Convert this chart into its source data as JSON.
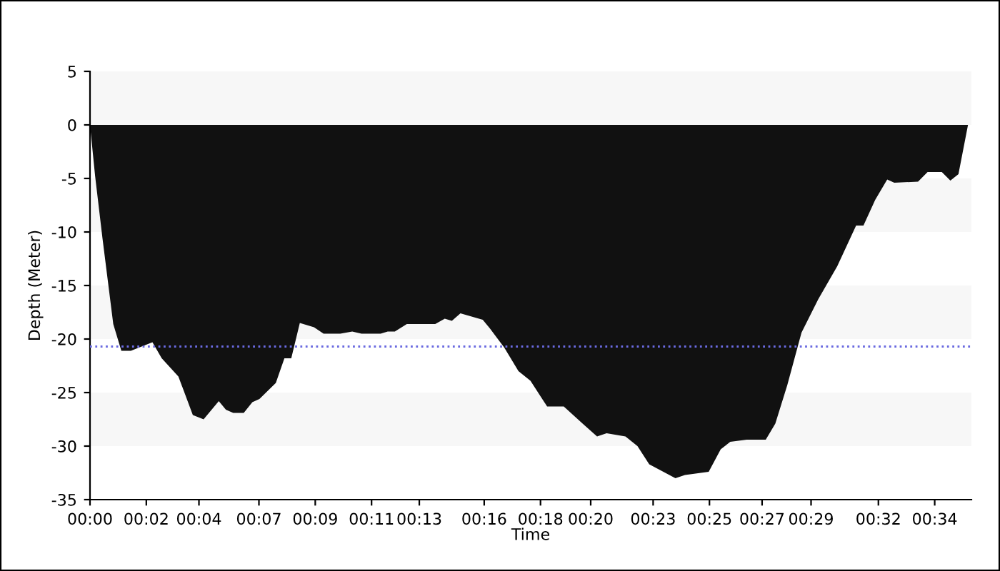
{
  "chart_data": {
    "type": "area",
    "xlabel": "Time",
    "ylabel": "Depth (Meter)",
    "x": [
      0,
      0.21,
      0.51,
      0.95,
      1.28,
      1.67,
      2.55,
      2.93,
      3.61,
      4.2,
      4.64,
      5.26,
      5.55,
      5.85,
      6.28,
      6.63,
      6.92,
      7.59,
      7.94,
      8.22,
      8.57,
      9.15,
      9.54,
      10.22,
      10.71,
      11.09,
      11.87,
      12.16,
      12.45,
      12.94,
      13.42,
      14.1,
      14.49,
      14.78,
      15.13,
      16.04,
      16.33,
      16.92,
      17.5,
      17.99,
      18.67,
      19.35,
      20.12,
      20.71,
      21.1,
      21.87,
      22.36,
      22.84,
      23.91,
      24.3,
      25.27,
      25.76,
      26.15,
      26.82,
      27.6,
      27.99,
      28.48,
      29.06,
      29.74,
      30.52,
      31.29,
      31.59,
      32.07,
      32.56,
      32.85,
      33.82,
      34.21,
      34.79,
      35.14,
      35.47,
      35.86
    ],
    "series": [
      {
        "color": "#111111",
        "values": [
          0,
          -4.8,
          -10.6,
          -18.6,
          -21.1,
          -21.1,
          -20.3,
          -21.8,
          -23.5,
          -27.1,
          -27.5,
          -25.8,
          -26.6,
          -26.9,
          -26.9,
          -25.9,
          -25.6,
          -24.1,
          -21.8,
          -21.8,
          -18.5,
          -18.9,
          -19.5,
          -19.5,
          -19.3,
          -19.5,
          -19.5,
          -19.3,
          -19.3,
          -18.6,
          -18.6,
          -18.6,
          -18.1,
          -18.3,
          -17.6,
          -18.2,
          -19.0,
          -20.8,
          -23.0,
          -23.9,
          -26.3,
          -26.3,
          -27.9,
          -29.1,
          -28.8,
          -29.1,
          -30.0,
          -31.7,
          -33.0,
          -32.7,
          -32.4,
          -30.3,
          -29.6,
          -29.4,
          -29.4,
          -27.9,
          -24.3,
          -19.4,
          -16.3,
          -13.2,
          -9.4,
          -9.4,
          -7.0,
          -5.1,
          -5.4,
          -5.3,
          -4.4,
          -4.4,
          -5.2,
          -4.6,
          0
        ]
      }
    ],
    "xlim": [
      0,
      36
    ],
    "ylim": [
      -35,
      5
    ],
    "xticks": [
      {
        "value": 0,
        "label": "00:00"
      },
      {
        "value": 2.3,
        "label": "00:02"
      },
      {
        "value": 4.45,
        "label": "00:04"
      },
      {
        "value": 6.9,
        "label": "00:07"
      },
      {
        "value": 9.2,
        "label": "00:09"
      },
      {
        "value": 11.5,
        "label": "00:11"
      },
      {
        "value": 13.45,
        "label": "00:13"
      },
      {
        "value": 16.1,
        "label": "00:16"
      },
      {
        "value": 18.4,
        "label": "00:18"
      },
      {
        "value": 20.45,
        "label": "00:20"
      },
      {
        "value": 23.0,
        "label": "00:23"
      },
      {
        "value": 25.3,
        "label": "00:25"
      },
      {
        "value": 27.45,
        "label": "00:27"
      },
      {
        "value": 29.45,
        "label": "00:29"
      },
      {
        "value": 32.2,
        "label": "00:32"
      },
      {
        "value": 34.5,
        "label": "00:34"
      }
    ],
    "yticks": [
      5,
      0,
      -5,
      -10,
      -15,
      -20,
      -25,
      -30,
      -35
    ],
    "ref_lines": [
      {
        "axis": "y",
        "value": -20.7,
        "color": "#6a6ae0",
        "line_style": "dotted"
      }
    ],
    "bands": [
      {
        "axis": "y",
        "from": 0,
        "to": 5,
        "color": "#f7f7f7"
      },
      {
        "axis": "y",
        "from": -10,
        "to": -5,
        "color": "#f7f7f7"
      },
      {
        "axis": "y",
        "from": -20,
        "to": -15,
        "color": "#f7f7f7"
      },
      {
        "axis": "y",
        "from": -30,
        "to": -25,
        "color": "#f7f7f7"
      }
    ],
    "grid": false
  }
}
